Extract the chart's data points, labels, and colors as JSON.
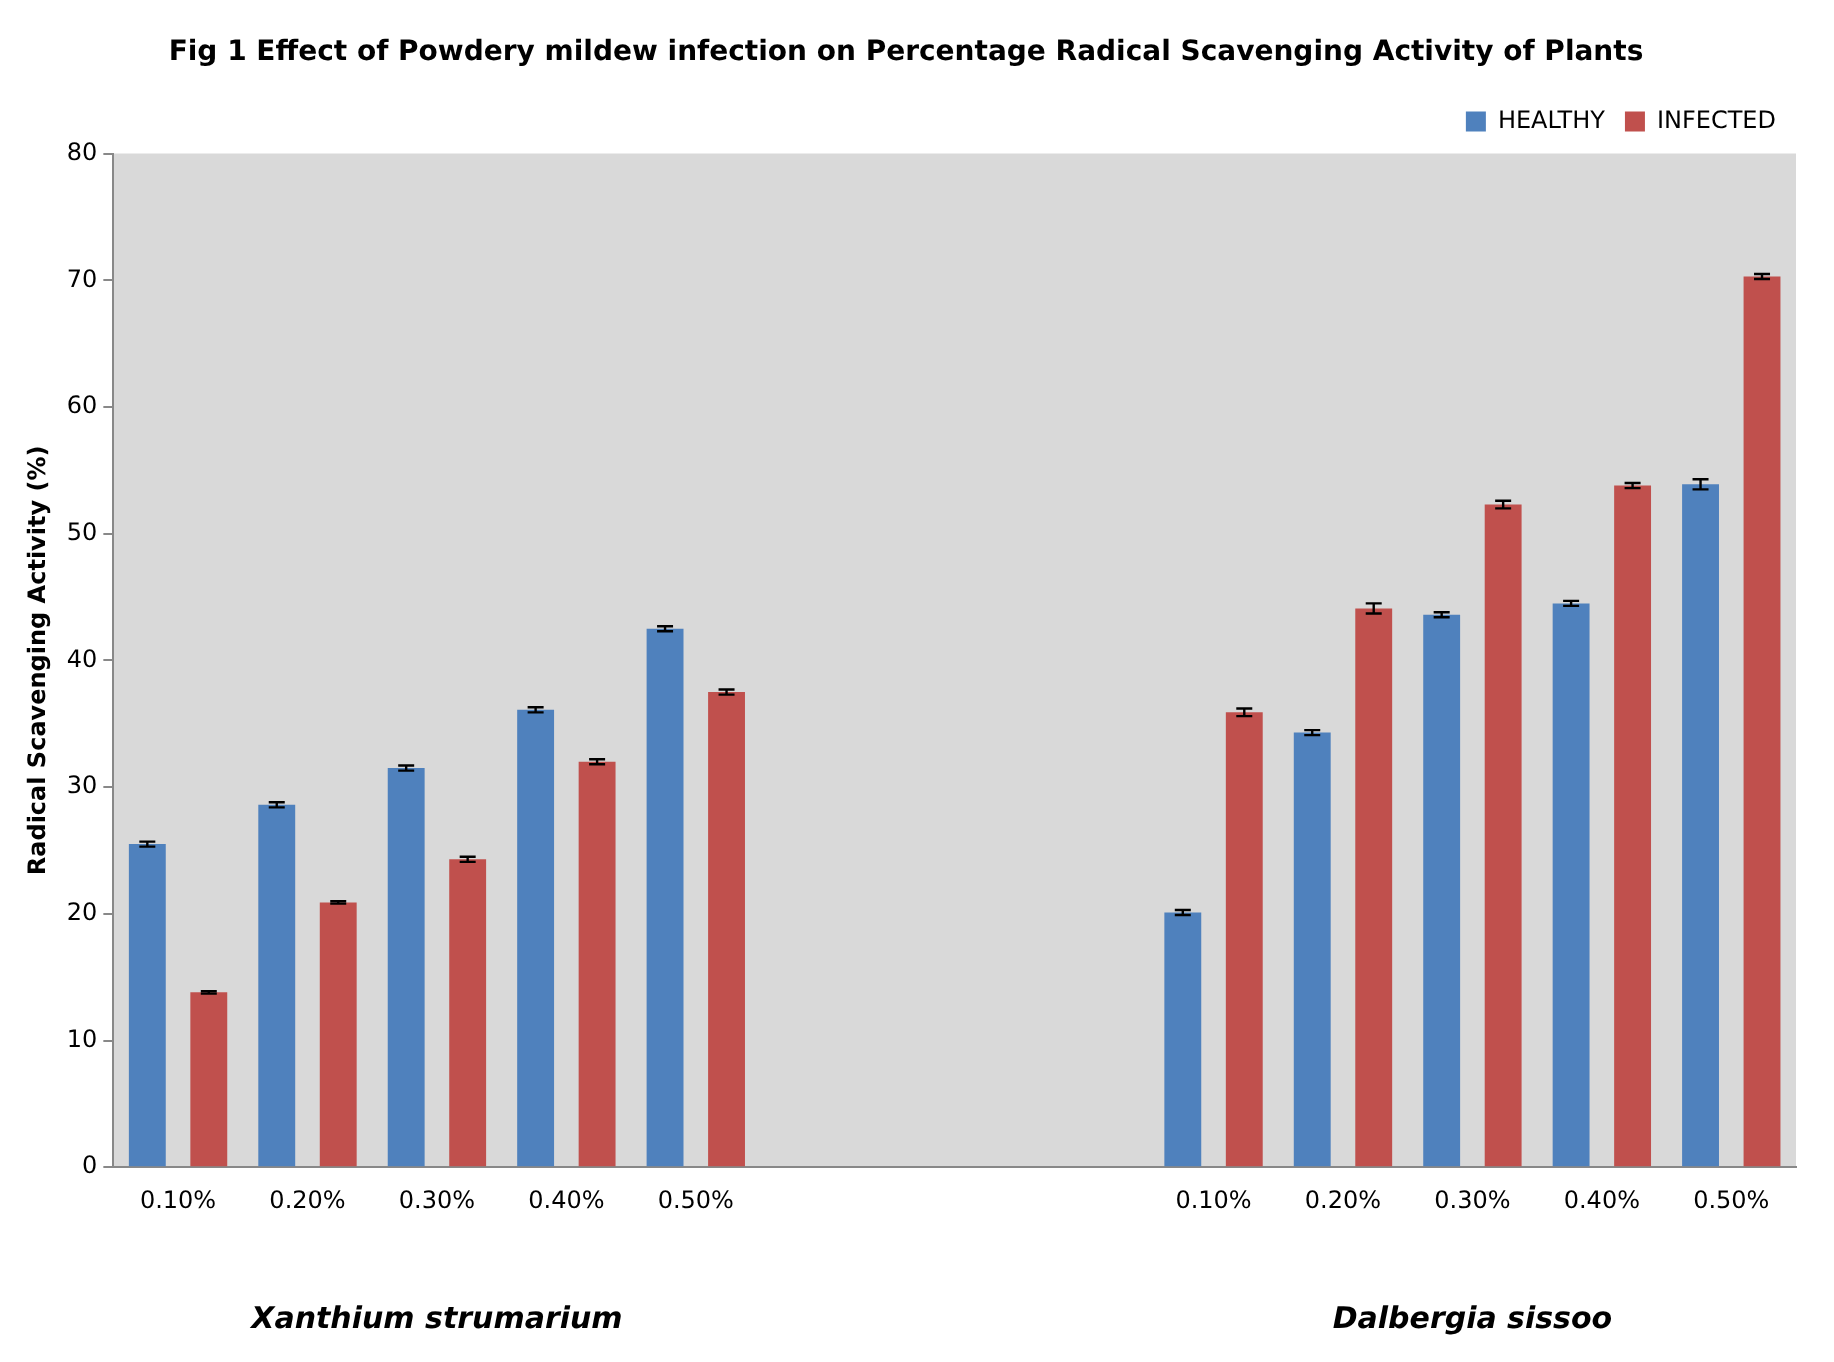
{
  "chart_data": {
    "type": "bar",
    "title": "Fig 1 Effect of Powdery mildew infection on Percentage Radical Scavenging Activity of Plants",
    "ylabel": "Radical Scavenging Activity (%)",
    "categories": [
      "0.10%",
      "0.20%",
      "0.30%",
      "0.40%",
      "0.50%",
      null,
      null,
      null,
      "0.10%",
      "0.20%",
      "0.30%",
      "0.40%",
      "0.50%"
    ],
    "series": [
      {
        "name": "HEALTHY",
        "color": "#4f81bd",
        "values": [
          25.5,
          28.6,
          31.5,
          36.1,
          42.5,
          null,
          null,
          null,
          20.1,
          34.3,
          43.6,
          44.5,
          53.9
        ],
        "errors": [
          0.2,
          0.2,
          0.2,
          0.2,
          0.2,
          null,
          null,
          null,
          0.2,
          0.2,
          0.2,
          0.2,
          0.4
        ]
      },
      {
        "name": "INFECTED",
        "color": "#c0504d",
        "values": [
          13.8,
          20.9,
          24.3,
          32.0,
          37.5,
          null,
          null,
          null,
          35.9,
          44.1,
          52.3,
          53.8,
          70.3
        ],
        "errors": [
          0.1,
          0.1,
          0.2,
          0.2,
          0.2,
          null,
          null,
          null,
          0.3,
          0.4,
          0.3,
          0.2,
          0.2
        ]
      }
    ],
    "ylim": [
      0,
      80
    ],
    "yticks": [
      0,
      10,
      20,
      30,
      40,
      50,
      60,
      70,
      80
    ],
    "grid": false,
    "legend": "top right",
    "annotations": [
      "Xanthium strumarium",
      "Dalbergia sissoo"
    ]
  }
}
